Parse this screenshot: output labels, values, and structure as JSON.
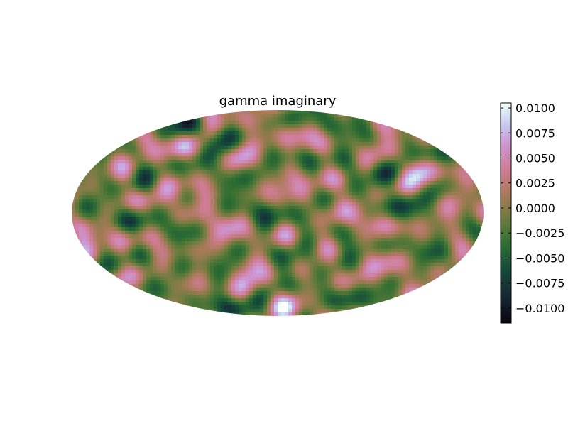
{
  "chart_data": {
    "type": "heatmap",
    "projection": "mollweide",
    "title": "gamma imaginary",
    "colormap": "cubehelix",
    "colorbar": {
      "orientation": "vertical",
      "placement": "right",
      "range": [
        -0.0115,
        0.0105
      ],
      "ticks": [
        -0.01,
        -0.0075,
        -0.005,
        -0.0025,
        0.0,
        0.0025,
        0.005,
        0.0075,
        0.01
      ],
      "tick_labels": [
        "−0.0100",
        "−0.0075",
        "−0.0050",
        "−0.0025",
        "0.0000",
        "0.0025",
        "0.0050",
        "0.0075",
        "0.0100"
      ]
    },
    "grid": false,
    "value_range": [
      -0.0115,
      0.0105
    ]
  }
}
